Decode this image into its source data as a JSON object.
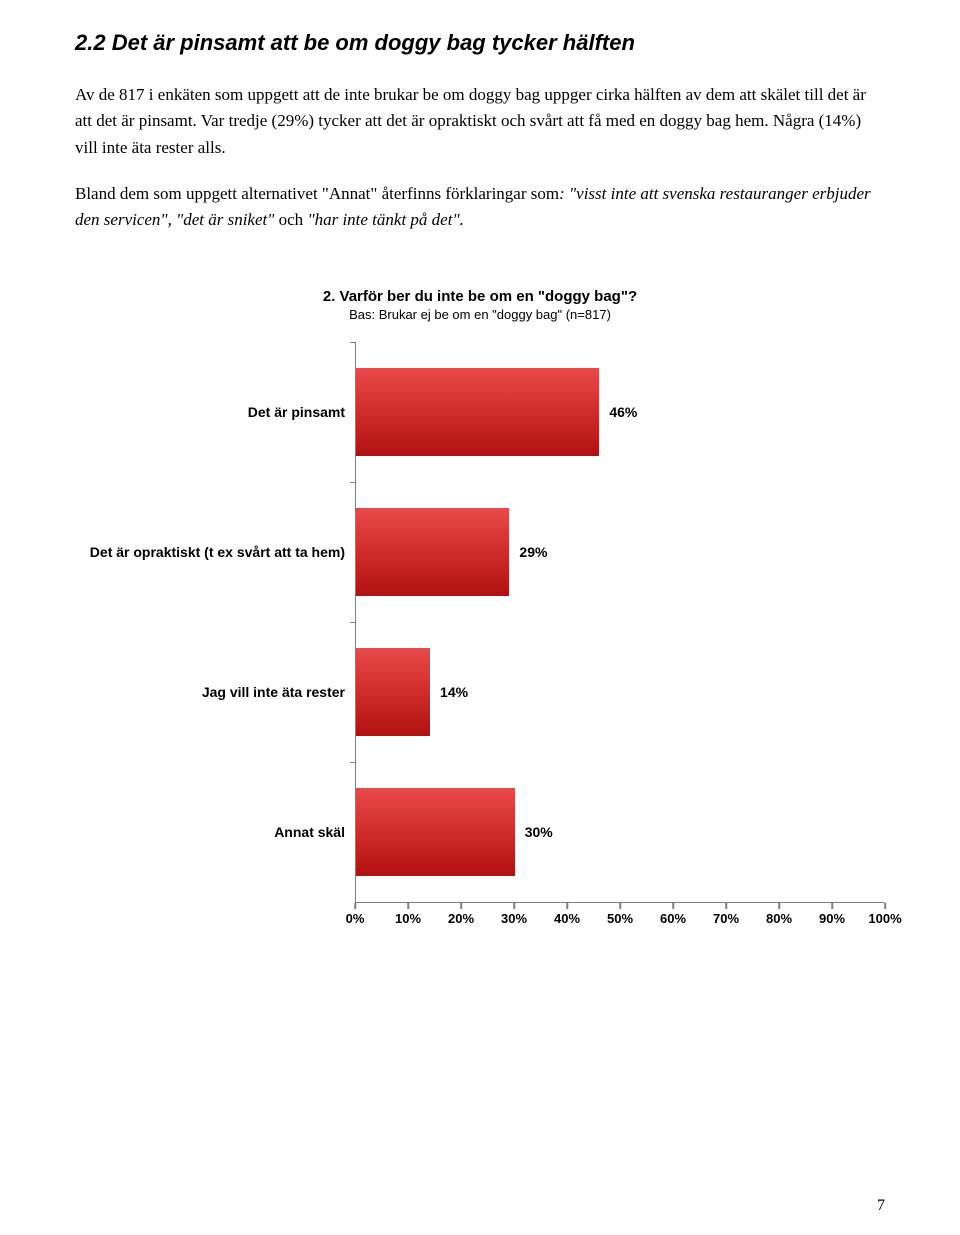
{
  "heading": "2.2  Det är pinsamt att be om doggy bag tycker hälften",
  "paragraphs": {
    "p1": "Av de 817 i enkäten som uppgett att de inte brukar be om doggy bag uppger cirka hälften av dem att skälet till det är att det är pinsamt. Var tredje (29%) tycker att det är opraktiskt och svårt att få med en doggy bag hem. Några (14%) vill inte äta rester alls.",
    "p2_a": "Bland dem som uppgett alternativet \"Annat\" återfinns förklaringar som",
    "p2_b": ": \"visst inte att svenska restauranger erbjuder den servicen\", \"det är sniket\"",
    "p2_c": " och ",
    "p2_d": "\"har inte tänkt på det\"."
  },
  "chart": {
    "title": "2. Varför ber du inte be om en \"doggy bag\"?",
    "subtitle": "Bas: Brukar ej be om en \"doggy bag\" (n=817)",
    "categories": [
      {
        "label": "Det är pinsamt",
        "value": 46,
        "display": "46%"
      },
      {
        "label": "Det är opraktiskt (t ex svårt att ta hem)",
        "value": 29,
        "display": "29%"
      },
      {
        "label": "Jag vill inte äta rester",
        "value": 14,
        "display": "14%"
      },
      {
        "label": "Annat skäl",
        "value": 30,
        "display": "30%"
      }
    ],
    "x_ticks": [
      "0%",
      "10%",
      "20%",
      "30%",
      "40%",
      "50%",
      "60%",
      "70%",
      "80%",
      "90%",
      "100%"
    ],
    "bar_colors": {
      "top": "#e84a4a",
      "mid": "#d22d2d",
      "bottom": "#b01111"
    },
    "axis_color": "#7f7f7f",
    "x_max": 100
  },
  "page_number": "7"
}
